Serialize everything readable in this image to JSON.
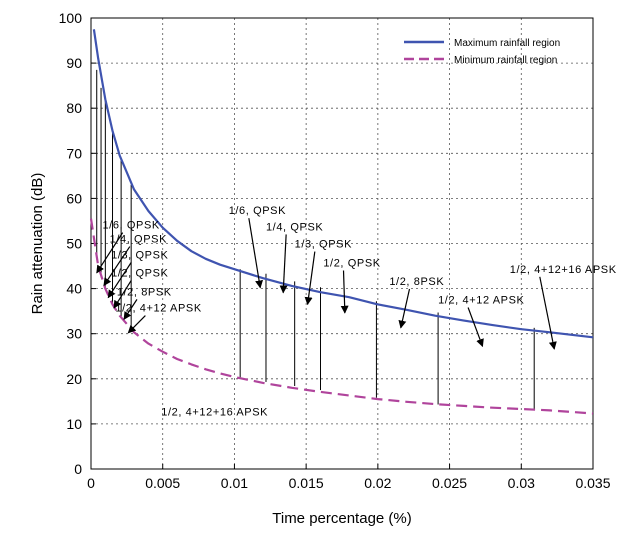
{
  "chart_data": {
    "type": "line",
    "xlabel": "Time percentage (%)",
    "ylabel": "Rain attenuation (dB)",
    "xlim": [
      0,
      0.035
    ],
    "ylim": [
      0,
      100
    ],
    "x_ticks": [
      "0",
      "0.005",
      "0.01",
      "0.015",
      "0.02",
      "0.025",
      "0.03",
      "0.035"
    ],
    "y_ticks": [
      "0",
      "10",
      "20",
      "30",
      "40",
      "50",
      "60",
      "70",
      "80",
      "90",
      "100"
    ],
    "grid": true,
    "legend_position": "top-right",
    "series": [
      {
        "name": "Maximum rainfall region",
        "color": "#3f54b0",
        "style": "solid",
        "x": [
          0.0002,
          0.0005,
          0.001,
          0.0015,
          0.002,
          0.003,
          0.004,
          0.005,
          0.006,
          0.007,
          0.008,
          0.009,
          0.01,
          0.012,
          0.014,
          0.016,
          0.018,
          0.02,
          0.022,
          0.024,
          0.026,
          0.028,
          0.03,
          0.032,
          0.035
        ],
        "y": [
          97.5,
          91,
          82,
          75,
          69.5,
          62,
          57.2,
          53.5,
          50.6,
          48.3,
          46.6,
          45.3,
          44.3,
          42.3,
          40.6,
          39.2,
          38.1,
          36.5,
          35.3,
          34,
          32.9,
          31.9,
          31,
          30.3,
          29.2
        ]
      },
      {
        "name": "Minimum rainfall region",
        "color": "#b0449c",
        "style": "dashed",
        "x": [
          0.0,
          0.0005,
          0.001,
          0.0015,
          0.002,
          0.003,
          0.004,
          0.005,
          0.006,
          0.007,
          0.008,
          0.009,
          0.01,
          0.012,
          0.014,
          0.016,
          0.018,
          0.02,
          0.022,
          0.024,
          0.026,
          0.028,
          0.03,
          0.032,
          0.035
        ],
        "y": [
          55.5,
          45,
          40,
          36.5,
          34,
          30.3,
          27.8,
          26,
          24.4,
          23.2,
          22.1,
          21.2,
          20.4,
          19.1,
          18,
          17.1,
          16.3,
          15.5,
          14.9,
          14.4,
          14,
          13.6,
          13.3,
          13,
          12.3
        ]
      }
    ],
    "markers": {
      "x": [
        0.0004,
        0.0007,
        0.001,
        0.0015,
        0.0021,
        0.0028,
        0.0104,
        0.0122,
        0.0142,
        0.016,
        0.0199,
        0.0242,
        0.0309
      ],
      "y_low": [
        46.5,
        42.5,
        40,
        36.5,
        33.5,
        31,
        20.3,
        19.3,
        18.4,
        17.5,
        15.8,
        14.3,
        13.1
      ],
      "y_high": [
        88.5,
        84.5,
        82,
        75,
        68.5,
        63,
        44.3,
        43.3,
        41.6,
        40.3,
        37.2,
        34.7,
        31.3
      ]
    },
    "annotations": [
      {
        "text": "1/6, QPSK",
        "x": 0.0008,
        "y": 53.3,
        "tip_x": 0.0004,
        "tip_y": 43.5
      },
      {
        "text": "1/4, QPSK",
        "x": 0.0013,
        "y": 50.2,
        "tip_x": 0.0009,
        "tip_y": 40.7
      },
      {
        "text": "1/3, QPSK",
        "x": 0.0014,
        "y": 46.7,
        "tip_x": 0.0012,
        "tip_y": 38
      },
      {
        "text": "1/2, QPSK",
        "x": 0.0014,
        "y": 42.7,
        "tip_x": 0.0016,
        "tip_y": 35.7
      },
      {
        "text": "1/2, 8PSK",
        "x": 0.0018,
        "y": 38.5,
        "tip_x": 0.0023,
        "tip_y": 33.2
      },
      {
        "text": "1/2, 4+12 APSK",
        "x": 0.0017,
        "y": 34.9,
        "tip_x": 0.0026,
        "tip_y": 30.2
      },
      {
        "text": "1/6, QPSK",
        "x": 0.0096,
        "y": 56.5,
        "tip_x": 0.0118,
        "tip_y": 40.2
      },
      {
        "text": "1/4, QPSK",
        "x": 0.0122,
        "y": 52.9,
        "tip_x": 0.0134,
        "tip_y": 39.1
      },
      {
        "text": "1/3, QPSK",
        "x": 0.0142,
        "y": 49.1,
        "tip_x": 0.0151,
        "tip_y": 36.5
      },
      {
        "text": "1/2, QPSK",
        "x": 0.0162,
        "y": 44.9,
        "tip_x": 0.0177,
        "tip_y": 34.6
      },
      {
        "text": "1/2, 8PSK",
        "x": 0.0208,
        "y": 40.8,
        "tip_x": 0.0216,
        "tip_y": 31.3
      },
      {
        "text": "1/2, 4+12 APSK",
        "x": 0.0242,
        "y": 36.7,
        "tip_x": 0.0273,
        "tip_y": 27.2
      },
      {
        "text": "1/2, 4+12+16 APSK",
        "x": 0.0292,
        "y": 43.5,
        "tip_x": 0.0323,
        "tip_y": 26.6
      },
      {
        "text": "1/2, 4+12+16 APSK",
        "x": 0.0049,
        "y": 11.9,
        "tip_x": null,
        "tip_y": null
      }
    ]
  }
}
